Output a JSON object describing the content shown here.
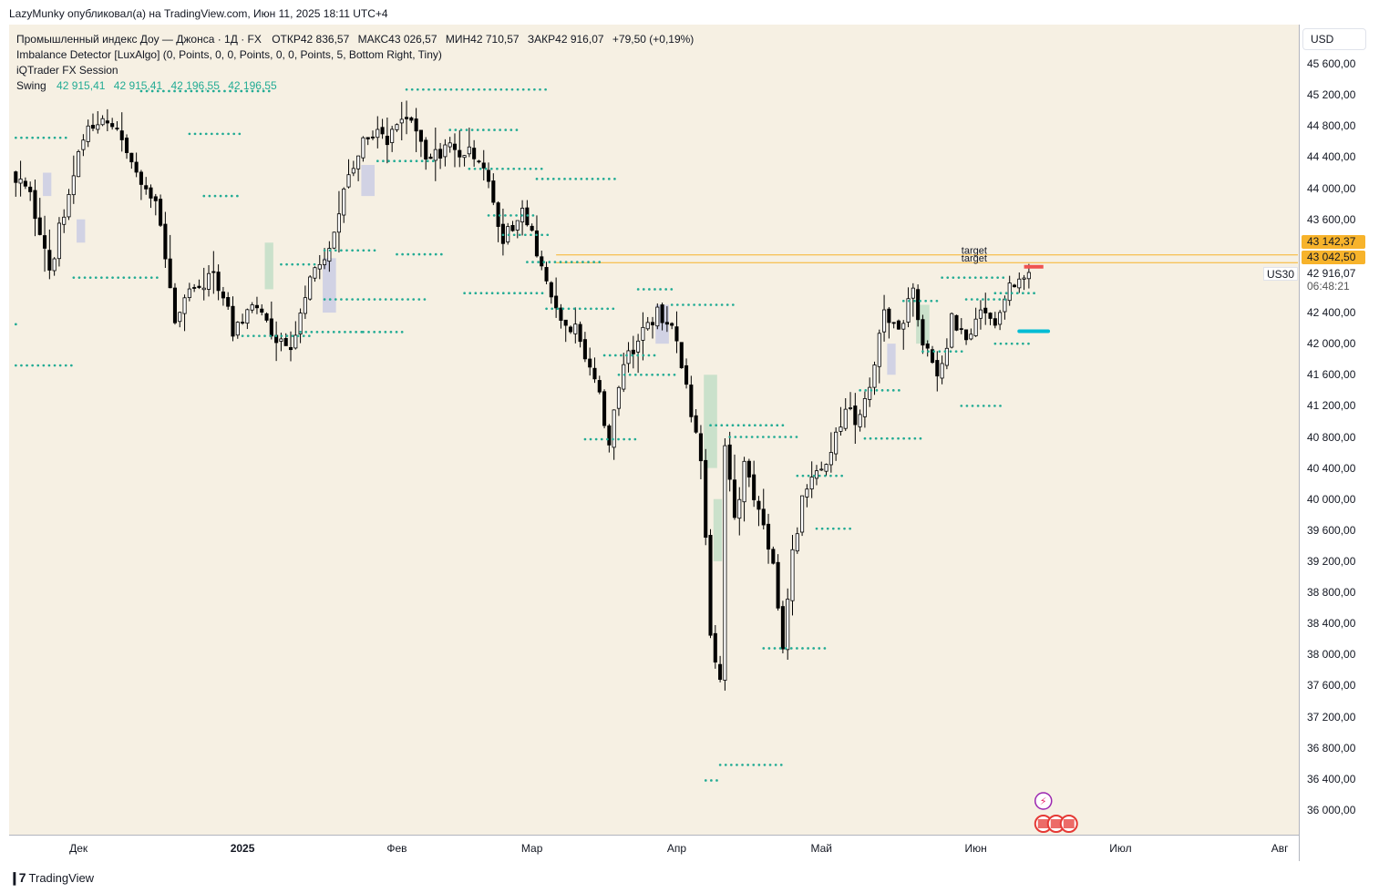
{
  "header": {
    "publisher": "LazyMunky опубликовал(а) на TradingView.com, Июн 11, 2025 18:11 UTC+4"
  },
  "footer": {
    "brand": "TradingView",
    "logo_icon": "tradingview-logo-icon"
  },
  "legend": {
    "instrument": "Промышленный индекс Доу — Джонса · 1Д · FX",
    "ohlc": [
      {
        "label": "ОТКР",
        "value": "42 836,57"
      },
      {
        "label": "МАКС",
        "value": "43 026,57"
      },
      {
        "label": "МИН",
        "value": "42 710,57"
      },
      {
        "label": "ЗАКР",
        "value": "42 916,07"
      }
    ],
    "change": "+79,50 (+0,19%)",
    "indicators": [
      "Imbalance Detector [LuxAlgo] (0, Points, 0, 0, Points, 0, 0, Points, 5, Bottom Right, Tiny)",
      "iQTrader FX Session"
    ],
    "swing": {
      "label": "Swing",
      "values": [
        "42 915,41",
        "42 915,41",
        "42 196,55",
        "42 196,55"
      ]
    }
  },
  "price_axis": {
    "currency": "USD",
    "symbol": "US30",
    "current_price": "42 916,07",
    "countdown": "06:48:21",
    "targets": [
      {
        "label": "target",
        "value": "43 142,37",
        "price": 43142.37
      },
      {
        "label": "target",
        "value": "43 042,50",
        "price": 43042.5
      }
    ],
    "colors": {
      "target": "#f7b32b"
    }
  },
  "chart_data": {
    "type": "candlestick",
    "instrument": "US30",
    "timeframe": "1Д",
    "ylim": [
      35600,
      46000
    ],
    "y_ticks": [
      36000,
      36400,
      36800,
      37200,
      37600,
      38000,
      38400,
      38800,
      39200,
      39600,
      40000,
      40400,
      40800,
      41200,
      41600,
      42000,
      42400,
      43600,
      44000,
      44400,
      44800,
      45200,
      45600
    ],
    "y_tick_labels": [
      "36 000,00",
      "36 400,00",
      "36 800,00",
      "37 200,00",
      "37 600,00",
      "38 000,00",
      "38 400,00",
      "38 800,00",
      "39 200,00",
      "39 600,00",
      "40 000,00",
      "40 400,00",
      "40 800,00",
      "41 200,00",
      "41 600,00",
      "42 000,00",
      "42 400,00",
      "43 600,00",
      "44 000,00",
      "44 400,00",
      "44 800,00",
      "45 200,00",
      "45 600,00"
    ],
    "x_ticks": [
      "Дек",
      "2025",
      "Фев",
      "Мар",
      "Апр",
      "Май",
      "Июн",
      "Июл",
      "Авг"
    ],
    "x_tick_index": [
      13,
      47,
      79,
      107,
      137,
      167,
      199,
      229,
      262
    ],
    "bold_ticks": [
      "2025"
    ],
    "anchors": [
      {
        "i": 0,
        "p": 44200
      },
      {
        "i": 4,
        "p": 43900
      },
      {
        "i": 8,
        "p": 42900
      },
      {
        "i": 12,
        "p": 44000
      },
      {
        "i": 15,
        "p": 44700
      },
      {
        "i": 20,
        "p": 44900
      },
      {
        "i": 25,
        "p": 44300
      },
      {
        "i": 30,
        "p": 43800
      },
      {
        "i": 34,
        "p": 42300
      },
      {
        "i": 38,
        "p": 42700
      },
      {
        "i": 42,
        "p": 42900
      },
      {
        "i": 46,
        "p": 42200
      },
      {
        "i": 50,
        "p": 42500
      },
      {
        "i": 54,
        "p": 42100
      },
      {
        "i": 58,
        "p": 42000
      },
      {
        "i": 62,
        "p": 42800
      },
      {
        "i": 66,
        "p": 43300
      },
      {
        "i": 70,
        "p": 44200
      },
      {
        "i": 74,
        "p": 44700
      },
      {
        "i": 78,
        "p": 44600
      },
      {
        "i": 82,
        "p": 44900
      },
      {
        "i": 86,
        "p": 44400
      },
      {
        "i": 90,
        "p": 44500
      },
      {
        "i": 94,
        "p": 44500
      },
      {
        "i": 98,
        "p": 44300
      },
      {
        "i": 102,
        "p": 43300
      },
      {
        "i": 106,
        "p": 43700
      },
      {
        "i": 110,
        "p": 43000
      },
      {
        "i": 114,
        "p": 42300
      },
      {
        "i": 118,
        "p": 42100
      },
      {
        "i": 122,
        "p": 41300
      },
      {
        "i": 124,
        "p": 40800
      },
      {
        "i": 127,
        "p": 41700
      },
      {
        "i": 131,
        "p": 42200
      },
      {
        "i": 134,
        "p": 42400
      },
      {
        "i": 137,
        "p": 42200
      },
      {
        "i": 140,
        "p": 41500
      },
      {
        "i": 143,
        "p": 40500
      },
      {
        "i": 145,
        "p": 38300
      },
      {
        "i": 147,
        "p": 37700
      },
      {
        "i": 148,
        "p": 40600
      },
      {
        "i": 150,
        "p": 39700
      },
      {
        "i": 152,
        "p": 40400
      },
      {
        "i": 154,
        "p": 40100
      },
      {
        "i": 156,
        "p": 39600
      },
      {
        "i": 158,
        "p": 39200
      },
      {
        "i": 160,
        "p": 38100
      },
      {
        "i": 162,
        "p": 39300
      },
      {
        "i": 164,
        "p": 40000
      },
      {
        "i": 167,
        "p": 40300
      },
      {
        "i": 170,
        "p": 40600
      },
      {
        "i": 173,
        "p": 41100
      },
      {
        "i": 176,
        "p": 41000
      },
      {
        "i": 178,
        "p": 41500
      },
      {
        "i": 181,
        "p": 42400
      },
      {
        "i": 184,
        "p": 42100
      },
      {
        "i": 187,
        "p": 42700
      },
      {
        "i": 189,
        "p": 42000
      },
      {
        "i": 192,
        "p": 41500
      },
      {
        "i": 195,
        "p": 42300
      },
      {
        "i": 198,
        "p": 42000
      },
      {
        "i": 201,
        "p": 42400
      },
      {
        "i": 204,
        "p": 42200
      },
      {
        "i": 207,
        "p": 42800
      },
      {
        "i": 210,
        "p": 42916
      }
    ],
    "last": {
      "open": 42836.57,
      "high": 43026.57,
      "low": 42710.57,
      "close": 42916.07
    },
    "swing_levels": [
      {
        "price": 44650,
        "from": 0,
        "to": 11
      },
      {
        "price": 42250,
        "from": 0,
        "to": 1
      },
      {
        "price": 41720,
        "from": 0,
        "to": 12
      },
      {
        "price": 42850,
        "from": 12,
        "to": 30
      },
      {
        "price": 45250,
        "from": 26,
        "to": 53
      },
      {
        "price": 44700,
        "from": 36,
        "to": 47
      },
      {
        "price": 43900,
        "from": 39,
        "to": 47
      },
      {
        "price": 42100,
        "from": 47,
        "to": 61
      },
      {
        "price": 43020,
        "from": 55,
        "to": 63
      },
      {
        "price": 42150,
        "from": 59,
        "to": 72
      },
      {
        "price": 43200,
        "from": 64,
        "to": 75
      },
      {
        "price": 42570,
        "from": 64,
        "to": 85
      },
      {
        "price": 43150,
        "from": 79,
        "to": 89
      },
      {
        "price": 44350,
        "from": 75,
        "to": 87
      },
      {
        "price": 42650,
        "from": 93,
        "to": 110
      },
      {
        "price": 42150,
        "from": 72,
        "to": 81
      },
      {
        "price": 45270,
        "from": 81,
        "to": 110
      },
      {
        "price": 44750,
        "from": 90,
        "to": 104
      },
      {
        "price": 44250,
        "from": 94,
        "to": 110
      },
      {
        "price": 43650,
        "from": 98,
        "to": 108
      },
      {
        "price": 43400,
        "from": 101,
        "to": 111
      },
      {
        "price": 44120,
        "from": 108,
        "to": 125
      },
      {
        "price": 43050,
        "from": 106,
        "to": 122
      },
      {
        "price": 42450,
        "from": 110,
        "to": 124
      },
      {
        "price": 42700,
        "from": 129,
        "to": 137
      },
      {
        "price": 42500,
        "from": 136,
        "to": 149
      },
      {
        "price": 41600,
        "from": 125,
        "to": 137
      },
      {
        "price": 41850,
        "from": 122,
        "to": 133
      },
      {
        "price": 40770,
        "from": 118,
        "to": 129
      },
      {
        "price": 40950,
        "from": 144,
        "to": 159
      },
      {
        "price": 40800,
        "from": 148,
        "to": 162
      },
      {
        "price": 36580,
        "from": 146,
        "to": 159
      },
      {
        "price": 36380,
        "from": 143,
        "to": 146
      },
      {
        "price": 38080,
        "from": 155,
        "to": 168
      },
      {
        "price": 40300,
        "from": 162,
        "to": 172
      },
      {
        "price": 39620,
        "from": 166,
        "to": 174
      },
      {
        "price": 41400,
        "from": 175,
        "to": 184
      },
      {
        "price": 40780,
        "from": 176,
        "to": 188
      },
      {
        "price": 42550,
        "from": 184,
        "to": 192
      },
      {
        "price": 41900,
        "from": 188,
        "to": 197
      },
      {
        "price": 42850,
        "from": 192,
        "to": 205
      },
      {
        "price": 42570,
        "from": 197,
        "to": 206
      },
      {
        "price": 41200,
        "from": 196,
        "to": 205
      },
      {
        "price": 42000,
        "from": 203,
        "to": 211
      },
      {
        "price": 42650,
        "from": 203,
        "to": 212
      }
    ],
    "imbalance_zones": [
      {
        "from": 52,
        "to": 53,
        "top": 43300,
        "bottom": 42700,
        "kind": "bull"
      },
      {
        "from": 143,
        "to": 145,
        "top": 41600,
        "bottom": 40400,
        "kind": "bull"
      },
      {
        "from": 145,
        "to": 146,
        "top": 40000,
        "bottom": 39200,
        "kind": "bull"
      },
      {
        "from": 187,
        "to": 189,
        "top": 42500,
        "bottom": 42000,
        "kind": "bull"
      },
      {
        "from": 6,
        "to": 7,
        "top": 44200,
        "bottom": 43900,
        "kind": "bear"
      },
      {
        "from": 13,
        "to": 14,
        "top": 43600,
        "bottom": 43300,
        "kind": "bear"
      },
      {
        "from": 64,
        "to": 66,
        "top": 43100,
        "bottom": 42400,
        "kind": "bear"
      },
      {
        "from": 72,
        "to": 74,
        "top": 44300,
        "bottom": 43900,
        "kind": "bear"
      },
      {
        "from": 133,
        "to": 135,
        "top": 42500,
        "bottom": 42000,
        "kind": "bear"
      },
      {
        "from": 181,
        "to": 182,
        "top": 42000,
        "bottom": 41600,
        "kind": "bear"
      }
    ],
    "zone_colors": {
      "bull": "#a5d6b8",
      "bear": "#b3b9e6"
    },
    "swing_color": "#22ab94",
    "supply_marker": {
      "price": 42990,
      "from": 209,
      "to": 213,
      "color": "#ef5350"
    },
    "demand_marker": {
      "price": 42160,
      "from": 208,
      "to": 214,
      "color": "#00bcd4"
    }
  }
}
